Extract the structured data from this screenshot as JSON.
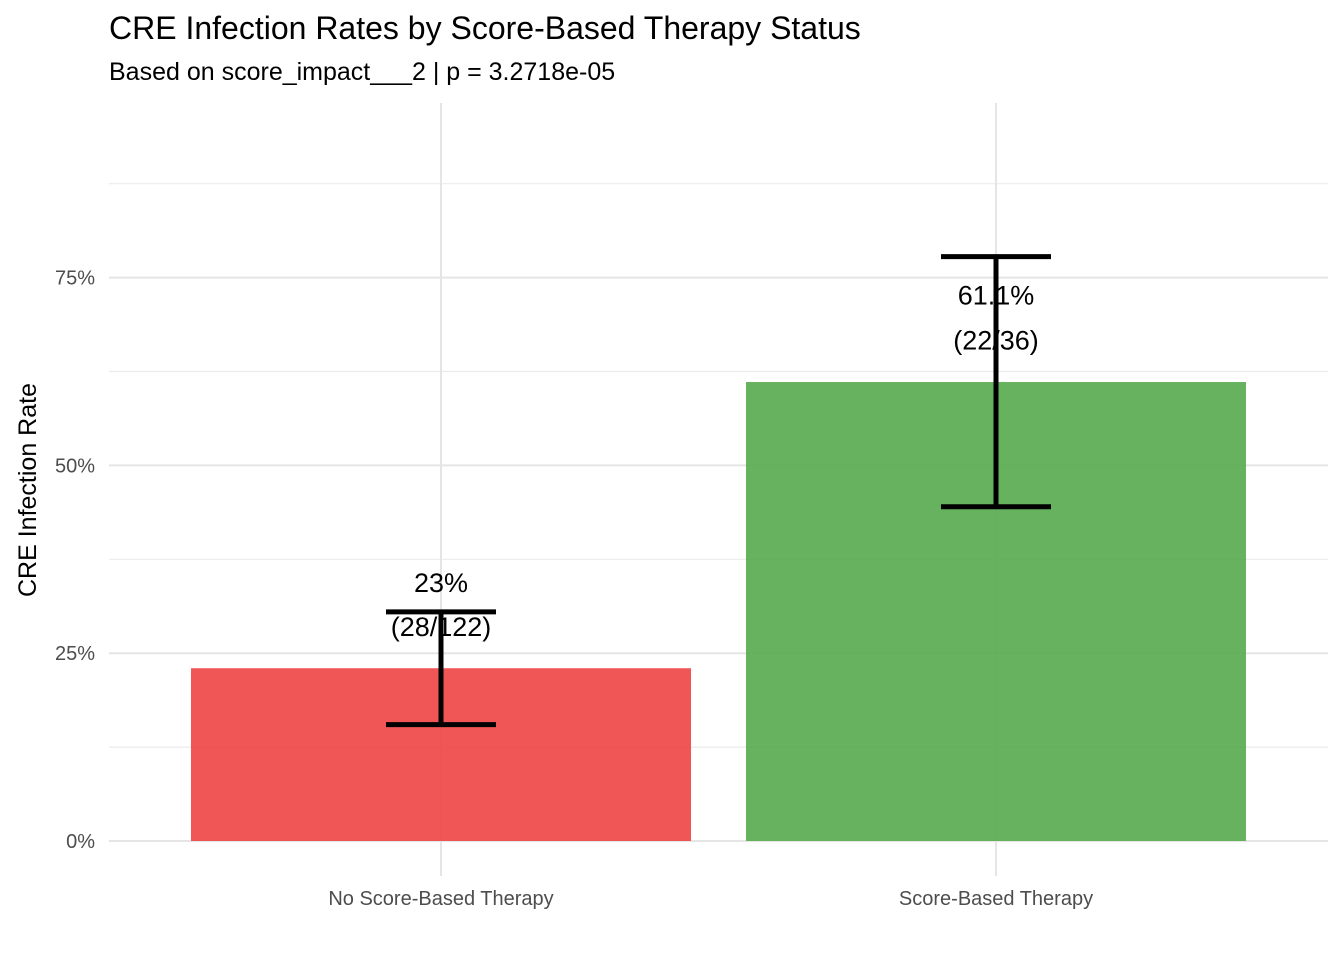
{
  "chart_data": {
    "type": "bar",
    "title": "CRE Infection Rates by Score-Based Therapy Status",
    "subtitle": "Based on score_impact___2 | p = 3.2718e-05",
    "xlabel": "",
    "ylabel": "CRE Infection Rate",
    "categories": [
      "No Score-Based Therapy",
      "Score-Based Therapy"
    ],
    "values": [
      0.23,
      0.611
    ],
    "error_low": [
      0.155,
      0.445
    ],
    "error_high": [
      0.305,
      0.778
    ],
    "data_labels": [
      {
        "pct": "23%",
        "count": "(28/122)"
      },
      {
        "pct": "61.1%",
        "count": "(22/36)"
      }
    ],
    "bar_colors": [
      "#ee4444",
      "#55aa4d"
    ],
    "ylim": [
      0,
      0.94
    ],
    "y_ticks": [
      0,
      0.25,
      0.5,
      0.75
    ],
    "y_tick_labels": [
      "0%",
      "25%",
      "50%",
      "75%"
    ],
    "grid": true,
    "legend": "none"
  }
}
